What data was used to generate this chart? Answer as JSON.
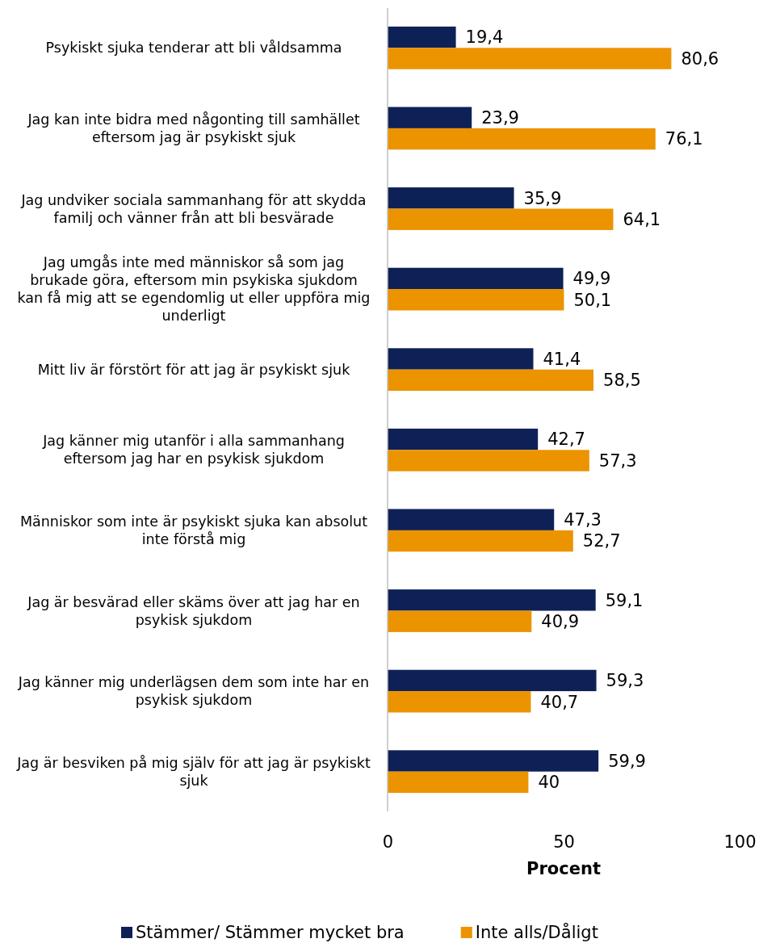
{
  "chart_data": {
    "type": "bar",
    "orientation": "horizontal",
    "xlabel": "Procent",
    "categories": [
      "Psykiskt sjuka tenderar att bli våldsamma",
      "Jag kan inte bidra med någonting till samhället eftersom jag är psykiskt sjuk",
      "Jag undviker sociala sammanhang för att skydda familj och vänner från att bli besvärade",
      "Jag umgås inte med människor så som jag brukade göra, eftersom min psykiska sjukdom kan få mig att se egendomlig ut eller uppföra mig underligt",
      "Mitt liv är förstört för att jag är psykiskt sjuk",
      "Jag känner mig utanför i alla sammanhang eftersom jag har en psykisk sjukdom",
      "Människor som inte är psykiskt sjuka kan absolut inte förstå mig",
      "Jag är besvärad eller skäms över att jag har en psykisk sjukdom",
      "Jag känner mig underlägsen dem som inte har en psykisk sjukdom",
      "Jag är besviken på mig själv för att jag är psykiskt sjuk"
    ],
    "series": [
      {
        "name": "Stämmer/ Stämmer mycket bra",
        "color": "#0e2157",
        "values": [
          19.4,
          23.9,
          35.9,
          49.9,
          41.4,
          42.7,
          47.3,
          59.1,
          59.3,
          59.9
        ],
        "value_labels": [
          "19,4",
          "23,9",
          "35,9",
          "49,9",
          "41,4",
          "42,7",
          "47,3",
          "59,1",
          "59,3",
          "59,9"
        ]
      },
      {
        "name": "Inte alls/Dåligt",
        "color": "#ec9300",
        "values": [
          80.6,
          76.1,
          64.1,
          50.1,
          58.5,
          57.3,
          52.7,
          40.9,
          40.7,
          40
        ],
        "value_labels": [
          "80,6",
          "76,1",
          "64,1",
          "50,1",
          "58,5",
          "57,3",
          "52,7",
          "40,9",
          "40,7",
          "40"
        ]
      }
    ],
    "xlim": [
      0,
      100
    ],
    "xticks": [
      0,
      50,
      100
    ],
    "grid": false,
    "legend": "bottom"
  }
}
